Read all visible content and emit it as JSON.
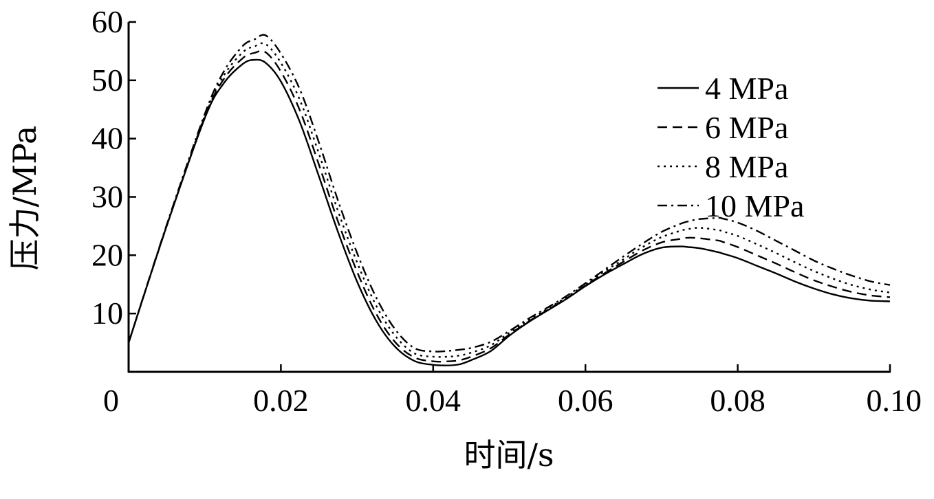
{
  "chart_data": {
    "type": "line",
    "title": "",
    "xlabel": "时间/s",
    "ylabel": "压力/MPa",
    "xlim": [
      0,
      0.1
    ],
    "ylim": [
      0,
      60
    ],
    "xticks": [
      0,
      0.02,
      0.04,
      0.06,
      0.08,
      0.1
    ],
    "xtick_labels": [
      "0",
      "0.02",
      "0.04",
      "0.06",
      "0.08",
      "0.10"
    ],
    "yticks": [
      10,
      20,
      30,
      40,
      50,
      60
    ],
    "ytick_labels": [
      "10",
      "20",
      "30",
      "40",
      "50",
      "60"
    ],
    "grid": false,
    "legend_position": "top-right",
    "x": [
      0,
      0.005,
      0.01,
      0.0125,
      0.015,
      0.0165,
      0.018,
      0.02,
      0.0225,
      0.025,
      0.0275,
      0.03,
      0.0325,
      0.035,
      0.0375,
      0.04,
      0.042,
      0.0435,
      0.045,
      0.0475,
      0.05,
      0.0525,
      0.055,
      0.0575,
      0.06,
      0.0625,
      0.065,
      0.0675,
      0.07,
      0.0725,
      0.0735,
      0.075,
      0.0775,
      0.078,
      0.08,
      0.0825,
      0.085,
      0.0875,
      0.09,
      0.0925,
      0.095,
      0.0975,
      0.1
    ],
    "series": [
      {
        "name": "4 MPa",
        "dash": "solid",
        "values": [
          5,
          25,
          43.5,
          49.5,
          52.8,
          53.5,
          53,
          49.8,
          42.8,
          33.5,
          24,
          15.5,
          8.8,
          4.3,
          1.9,
          1.2,
          1.1,
          1.3,
          2,
          3.5,
          6.2,
          8.5,
          10.5,
          12.5,
          14.7,
          16.7,
          18.5,
          20.2,
          21.3,
          21.5,
          21.4,
          21.2,
          20.5,
          20.3,
          19.5,
          18.2,
          16.9,
          15.5,
          14.3,
          13.3,
          12.6,
          12.2,
          12.1
        ]
      },
      {
        "name": "6 MPa",
        "dash": "dashed",
        "values": [
          5,
          25,
          43.7,
          50.2,
          53.8,
          54.7,
          54.8,
          51.5,
          44.8,
          35.5,
          25.8,
          17.2,
          10,
          5.1,
          2.5,
          1.8,
          1.8,
          2,
          2.6,
          4,
          6.4,
          8.6,
          10.6,
          12.6,
          14.8,
          16.9,
          18.9,
          20.8,
          22.2,
          22.8,
          23,
          22.9,
          22.5,
          22.3,
          21.4,
          20,
          18.6,
          17.1,
          15.7,
          14.6,
          13.7,
          13.1,
          12.8
        ]
      },
      {
        "name": "8 MPa",
        "dash": "dotted",
        "values": [
          5,
          25,
          43.9,
          50.8,
          54.8,
          55.8,
          56.2,
          53,
          46.6,
          37.4,
          27.6,
          18.8,
          11.4,
          6.2,
          3.2,
          2.6,
          2.6,
          2.8,
          3.3,
          4.5,
          6.7,
          8.8,
          10.8,
          12.8,
          15,
          17.2,
          19.3,
          21.4,
          23.1,
          24.2,
          24.5,
          24.7,
          24.3,
          24.1,
          23.3,
          21.9,
          20.4,
          18.8,
          17.3,
          16,
          14.9,
          14.1,
          13.6
        ]
      },
      {
        "name": "10 MPa",
        "dash": "dashdot",
        "values": [
          5,
          25.2,
          44.2,
          51.5,
          55.9,
          57,
          57.7,
          54.6,
          48.4,
          39.3,
          29.4,
          20.4,
          12.8,
          7.3,
          4.1,
          3.5,
          3.6,
          3.8,
          4.1,
          5.1,
          7,
          9.1,
          11,
          13,
          15.2,
          17.5,
          19.8,
          22,
          24,
          25.4,
          25.8,
          26.2,
          26.4,
          26.3,
          25.6,
          24.2,
          22.5,
          20.8,
          19.1,
          17.7,
          16.5,
          15.5,
          14.9
        ]
      }
    ]
  }
}
